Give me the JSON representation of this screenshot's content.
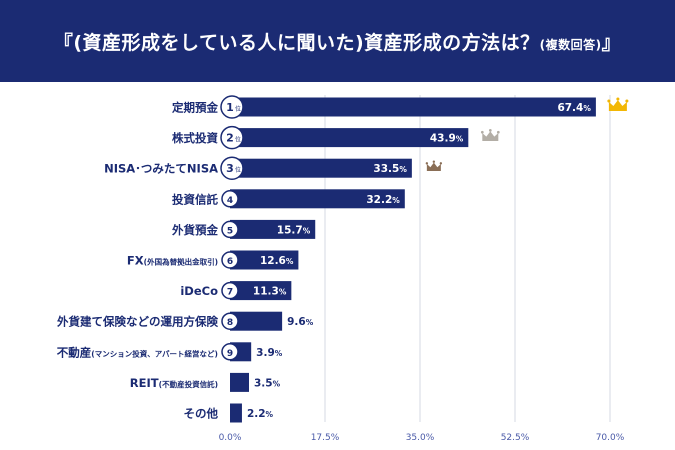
{
  "title": {
    "main": "『(資産形成をしている人に聞いた)資産形成の方法は？",
    "sub": "(複数回答)",
    "end": "』"
  },
  "colors": {
    "header_bg": "#1b2b73",
    "bar": "#1b2b73",
    "grid": "#d6d9e3",
    "crown_gold": "#f2b705",
    "crown_silver": "#b3aea6",
    "crown_bronze": "#8a6e56"
  },
  "chart_data": {
    "type": "bar",
    "orientation": "horizontal",
    "xlim": [
      0,
      70
    ],
    "xticks": [
      "0.0%",
      "17.5%",
      "35.0%",
      "52.5%",
      "70.0%"
    ],
    "grid": true,
    "categories": [
      {
        "label": "定期預金",
        "note": ""
      },
      {
        "label": "株式投資",
        "note": ""
      },
      {
        "label": "NISA･つみたてNISA",
        "note": ""
      },
      {
        "label": "投資信託",
        "note": ""
      },
      {
        "label": "外貨預金",
        "note": ""
      },
      {
        "label": "FX",
        "note": "(外国為替拠出金取引)"
      },
      {
        "label": "iDeCo",
        "note": ""
      },
      {
        "label": "外貨建て保険などの運用方保険",
        "note": ""
      },
      {
        "label": "不動産",
        "note": "(マンション投資、アパート経営など)"
      },
      {
        "label": "REIT",
        "note": "(不動産投資信託)"
      },
      {
        "label": "その他",
        "note": ""
      }
    ],
    "values": [
      67.4,
      43.9,
      33.5,
      32.2,
      15.7,
      12.6,
      11.3,
      9.6,
      3.9,
      3.5,
      2.2
    ],
    "value_labels": [
      "67.4",
      "43.9",
      "33.5",
      "32.2",
      "15.7",
      "12.6",
      "11.3",
      "9.6",
      "3.9",
      "3.5",
      "2.2"
    ],
    "unit": "%",
    "ranks": [
      "1",
      "2",
      "3",
      "4",
      "5",
      "6",
      "7",
      "8",
      "9",
      "",
      ""
    ],
    "rank_suffix": "位",
    "crowns": [
      "gold",
      "silver",
      "bronze"
    ]
  }
}
